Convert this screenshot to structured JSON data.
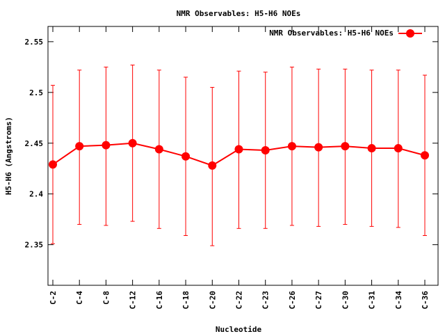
{
  "chart_data": {
    "type": "line",
    "title": "NMR Observables: H5-H6 NOEs",
    "xlabel": "Nucleotide",
    "ylabel": "H5-H6 (Angstroms)",
    "ylim": [
      2.31,
      2.565
    ],
    "yticks": [
      2.35,
      2.4,
      2.45,
      2.5,
      2.55
    ],
    "ytick_labels": [
      "2.35",
      "2.4",
      "2.45",
      "2.5",
      "2.55"
    ],
    "categories": [
      "C-2",
      "C-4",
      "C-8",
      "C-12",
      "C-16",
      "C-18",
      "C-20",
      "C-22",
      "C-23",
      "C-26",
      "C-27",
      "C-30",
      "C-31",
      "C-34",
      "C-36"
    ],
    "grid": false,
    "legend_position": "top-right",
    "series": [
      {
        "name": "NMR Observables: H5-H6 NOEs",
        "color": "#ff0000",
        "marker": "circle",
        "values": [
          2.429,
          2.447,
          2.448,
          2.45,
          2.444,
          2.437,
          2.428,
          2.444,
          2.443,
          2.447,
          2.446,
          2.447,
          2.445,
          2.445,
          2.438
        ],
        "error_low": [
          2.351,
          2.37,
          2.369,
          2.373,
          2.366,
          2.359,
          2.349,
          2.366,
          2.366,
          2.369,
          2.368,
          2.37,
          2.368,
          2.367,
          2.359
        ],
        "error_high": [
          2.507,
          2.522,
          2.525,
          2.527,
          2.522,
          2.515,
          2.505,
          2.521,
          2.52,
          2.525,
          2.523,
          2.523,
          2.522,
          2.522,
          2.517
        ]
      }
    ]
  }
}
